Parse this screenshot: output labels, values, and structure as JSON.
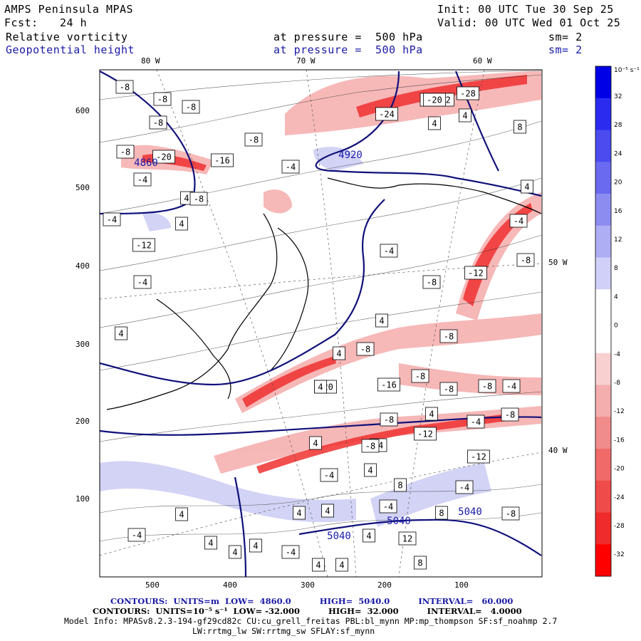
{
  "header": {
    "model": "AMPS Peninsula MPAS",
    "init": "Init: 00 UTC Tue 30 Sep 25",
    "fcst_label": "Fcst:",
    "fcst_value": "24 h",
    "valid": "Valid: 00 UTC Wed 01 Oct 25",
    "field1": {
      "name": "Relative vorticity",
      "level": "at pressure =  500 hPa",
      "sm": "sm= 2"
    },
    "field2": {
      "name": "Geopotential height",
      "level": "at pressure =  500 hPa",
      "sm": "sm= 2"
    }
  },
  "map": {
    "lon_top": [
      "80 W",
      "70 W",
      "60 W"
    ],
    "lon_right": [
      "50 W",
      "40 W"
    ],
    "y_ticks": [
      "600",
      "500",
      "400",
      "300",
      "200",
      "100"
    ],
    "x_ticks": [
      "500",
      "400",
      "300",
      "200",
      "100"
    ],
    "height_labels": [
      "4860",
      "4920",
      "5040",
      "5040",
      "5040"
    ],
    "contour_labels": [
      "-8",
      "-8",
      "-8",
      "-20",
      "-16",
      "-8",
      "-8",
      "-4",
      "4",
      "-8",
      "-4",
      "4",
      "-8",
      "-4",
      "-12",
      "-8",
      "-4",
      "-12",
      "4",
      "4",
      "-4",
      "-20",
      "-16",
      "-8",
      "-12",
      "-4",
      "4",
      "4",
      "-8",
      "4",
      "-8",
      "-28",
      "-24",
      "-20",
      "4",
      "4",
      "8",
      "4",
      "-4",
      "-8",
      "-12",
      "-8",
      "-8",
      "-8",
      "-8",
      "-4",
      "-8",
      "-4",
      "-8",
      "-12",
      "-4",
      "-8",
      "4",
      "8",
      "4",
      "4",
      "8",
      "4",
      "4",
      "4",
      "-4",
      "4",
      "4",
      "4",
      "4",
      "-4",
      "12",
      "8",
      "-4",
      "4",
      "-4"
    ]
  },
  "colorbar": {
    "unit": "10⁻⁵ s⁻¹",
    "labels": [
      "32",
      "28",
      "24",
      "20",
      "16",
      "12",
      "8",
      "4",
      "0",
      "-4",
      "-8",
      "-12",
      "-16",
      "-20",
      "-24",
      "-28",
      "-32"
    ],
    "colors": [
      "#0000e6",
      "#2b2bf0",
      "#4b4bf0",
      "#6a6af0",
      "#8c8cf0",
      "#aeaef4",
      "#d0d0f8",
      "#ffffff",
      "#ffffff",
      "#f8d0d0",
      "#f4aeae",
      "#f08c8c",
      "#f06a6a",
      "#f04b4b",
      "#f02b2b",
      "#ff0000"
    ]
  },
  "footer": {
    "line1": "CONTOURS:  UNITS=m  LOW=  4860.0          HIGH=  5040.0          INTERVAL=   60.000",
    "line2": "CONTOURS:  UNITS=10⁻⁵ s⁻¹  LOW= -32.000          HIGH=  32.000          INTERVAL=   4.0000",
    "line3": "Model Info: MPASv8.2.3-194-gf29cd82c CU:cu_grell_freitas PBL:bl_mynn MP:mp_thompson SF:sf_noahmp 2.7",
    "line4": "LW:rrtmg_lw SW:rrtmg_sw SFLAY:sf_mynn"
  }
}
